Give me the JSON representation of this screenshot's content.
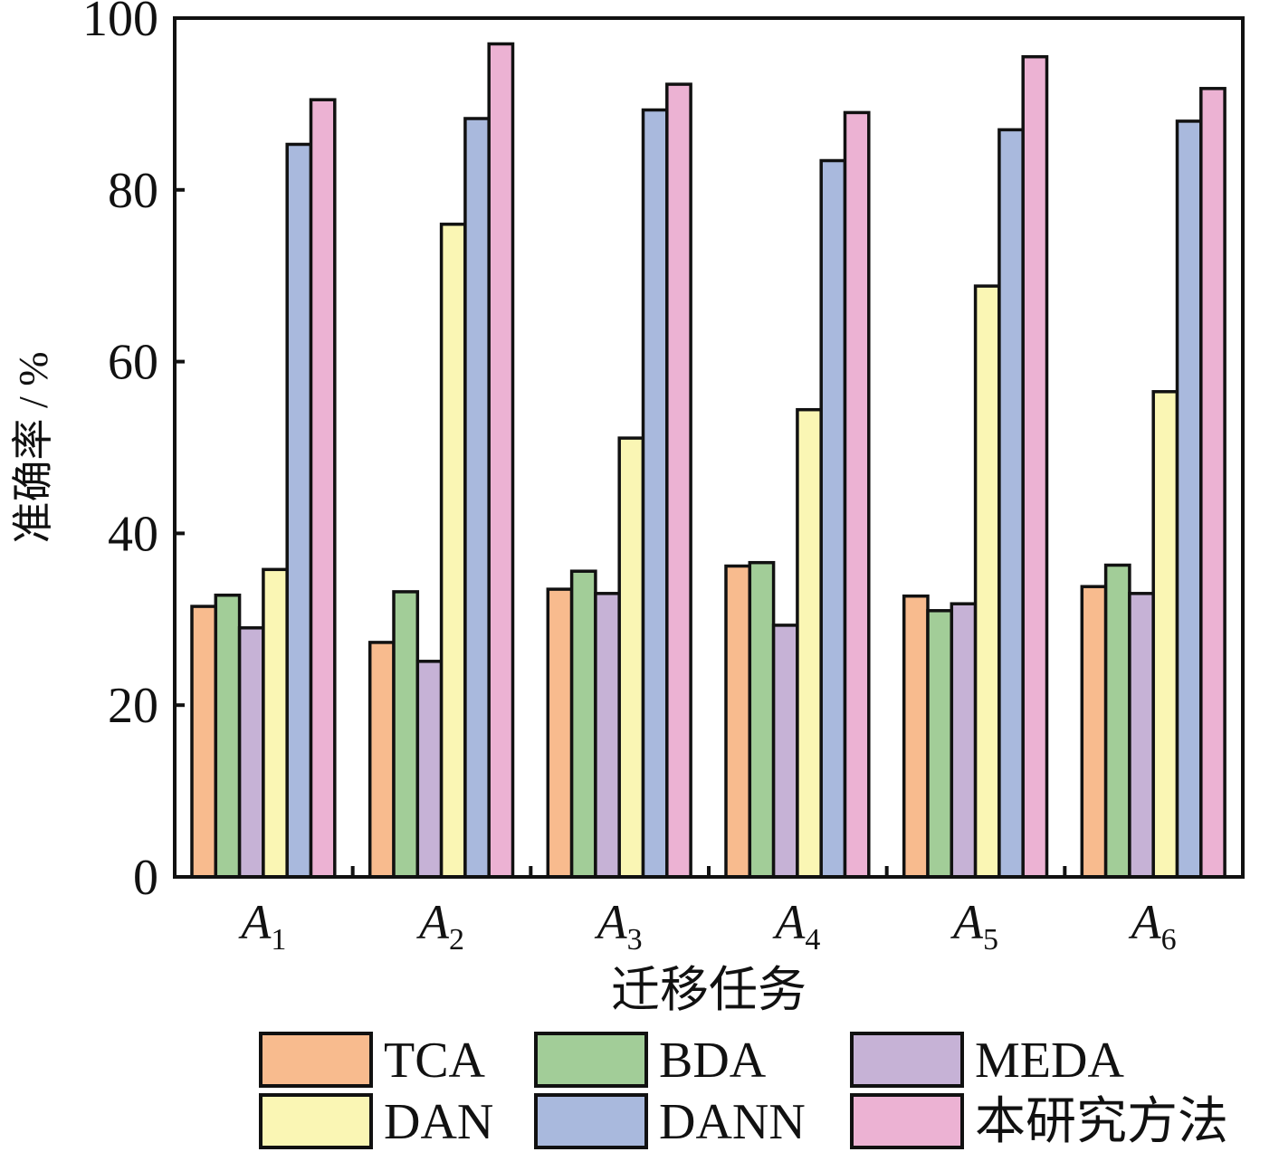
{
  "chart_data": {
    "type": "bar",
    "title": "",
    "xlabel": "迁移任务",
    "ylabel": "准确率 / %",
    "ylim": [
      0,
      100
    ],
    "yticks": [
      "0",
      "20",
      "40",
      "60",
      "80",
      "100"
    ],
    "yticks_values": [
      0,
      20,
      40,
      60,
      80,
      100
    ],
    "categories": [
      {
        "base": "A",
        "sub": "1"
      },
      {
        "base": "A",
        "sub": "2"
      },
      {
        "base": "A",
        "sub": "3"
      },
      {
        "base": "A",
        "sub": "4"
      },
      {
        "base": "A",
        "sub": "5"
      },
      {
        "base": "A",
        "sub": "6"
      }
    ],
    "legend_position": "bottom",
    "grid": false,
    "series": [
      {
        "name": "TCA",
        "color": "#f8bb8e",
        "values": [
          31.5,
          27.3,
          33.5,
          36.2,
          32.7,
          33.8
        ]
      },
      {
        "name": "BDA",
        "color": "#a2cd98",
        "values": [
          32.8,
          33.2,
          35.6,
          36.6,
          31.0,
          36.3
        ]
      },
      {
        "name": "MEDA",
        "color": "#c6b2d6",
        "values": [
          29.0,
          25.1,
          33.0,
          29.3,
          31.8,
          33.0
        ]
      },
      {
        "name": "DAN",
        "color": "#faf6b4",
        "values": [
          35.8,
          76.0,
          51.1,
          54.4,
          68.8,
          56.5
        ]
      },
      {
        "name": "DANN",
        "color": "#a9b9dd",
        "values": [
          85.3,
          88.3,
          89.3,
          83.4,
          87.0,
          88.0
        ]
      },
      {
        "name": "本研究方法",
        "color": "#ecb2d3",
        "values": [
          90.5,
          97.0,
          92.3,
          89.0,
          95.5,
          91.8
        ]
      }
    ]
  }
}
